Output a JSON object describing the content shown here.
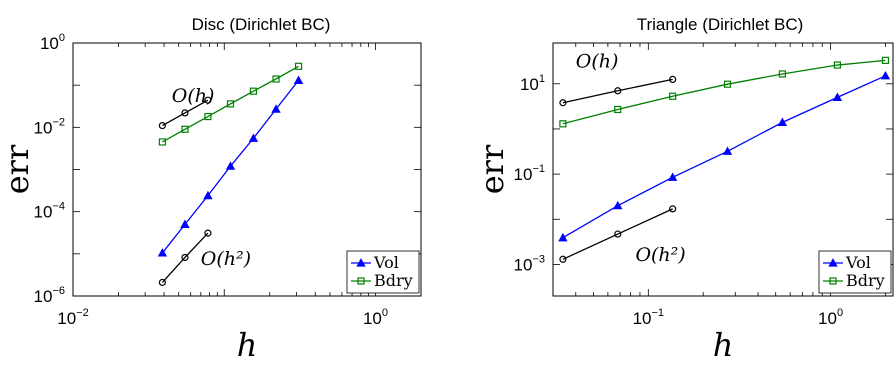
{
  "chart_data": [
    {
      "type": "line",
      "title": "Disc (Dirichlet BC)",
      "xlabel": "h",
      "ylabel": "err",
      "xscale": "log",
      "yscale": "log",
      "xlim": [
        0.01,
        2
      ],
      "ylim": [
        1e-06,
        1
      ],
      "xticks": [
        {
          "value": 0.01,
          "label": "10",
          "exp": "−2"
        },
        {
          "value": 1,
          "label": "10",
          "exp": "0"
        }
      ],
      "yticks": [
        {
          "value": 1,
          "label": "10",
          "exp": "0"
        },
        {
          "value": 0.01,
          "label": "10",
          "exp": "−2"
        },
        {
          "value": 0.0001,
          "label": "10",
          "exp": "−4"
        },
        {
          "value": 1e-06,
          "label": "10",
          "exp": "−6"
        }
      ],
      "legend_position": "bottom-right",
      "series": [
        {
          "name": "Vol",
          "color": "#0000ff",
          "marker": "triangle",
          "x": [
            0.039,
            0.055,
            0.078,
            0.11,
            0.156,
            0.22,
            0.31
          ],
          "y": [
            1.05e-05,
            5e-05,
            0.00024,
            0.0012,
            0.0055,
            0.027,
            0.13
          ]
        },
        {
          "name": "Bdry",
          "color": "#008000",
          "marker": "square",
          "x": [
            0.039,
            0.055,
            0.078,
            0.11,
            0.156,
            0.22,
            0.31
          ],
          "y": [
            0.0045,
            0.009,
            0.018,
            0.036,
            0.072,
            0.14,
            0.28
          ]
        },
        {
          "name": "",
          "color": "#000000",
          "marker": "circle",
          "x": [
            0.039,
            0.055,
            0.078
          ],
          "y": [
            0.011,
            0.022,
            0.044
          ]
        },
        {
          "name": "",
          "color": "#000000",
          "marker": "circle",
          "x": [
            0.039,
            0.055,
            0.078
          ],
          "y": [
            2.1e-06,
            8.2e-06,
            3.1e-05
          ]
        }
      ],
      "annotations": [
        {
          "text": "O(h)",
          "x": 0.045,
          "y": 0.04
        },
        {
          "text": "O(h²)",
          "x": 0.07,
          "y": 5.5e-06
        }
      ]
    },
    {
      "type": "line",
      "title": "Triangle (Dirichlet BC)",
      "xlabel": "h",
      "ylabel": "err",
      "xscale": "log",
      "yscale": "log",
      "xlim": [
        0.03,
        2.2
      ],
      "ylim": [
        0.0002,
        80
      ],
      "xticks": [
        {
          "value": 0.1,
          "label": "10",
          "exp": "−1"
        },
        {
          "value": 1,
          "label": "10",
          "exp": "0"
        }
      ],
      "yticks": [
        {
          "value": 10,
          "label": "10",
          "exp": "1"
        },
        {
          "value": 0.1,
          "label": "10",
          "exp": "−1"
        },
        {
          "value": 0.001,
          "label": "10",
          "exp": "−3"
        }
      ],
      "legend_position": "bottom-right",
      "series": [
        {
          "name": "Vol",
          "color": "#0000ff",
          "marker": "triangle",
          "x": [
            0.034,
            0.068,
            0.136,
            0.272,
            0.544,
            1.09,
            2.0
          ],
          "y": [
            0.0039,
            0.02,
            0.085,
            0.32,
            1.4,
            5.0,
            15
          ]
        },
        {
          "name": "Bdry",
          "color": "#008000",
          "marker": "square",
          "x": [
            0.034,
            0.068,
            0.136,
            0.272,
            0.544,
            1.09,
            2.0
          ],
          "y": [
            1.3,
            2.7,
            5.3,
            9.8,
            16.5,
            26,
            33
          ]
        },
        {
          "name": "",
          "color": "#000000",
          "marker": "circle",
          "x": [
            0.034,
            0.068,
            0.136
          ],
          "y": [
            3.8,
            7.0,
            12.5
          ]
        },
        {
          "name": "",
          "color": "#000000",
          "marker": "circle",
          "x": [
            0.034,
            0.068,
            0.136
          ],
          "y": [
            0.0013,
            0.0047,
            0.017
          ]
        }
      ],
      "annotations": [
        {
          "text": "O(h)",
          "x": 0.04,
          "y": 23
        },
        {
          "text": "O(h²)",
          "x": 0.085,
          "y": 0.0012
        }
      ]
    }
  ]
}
